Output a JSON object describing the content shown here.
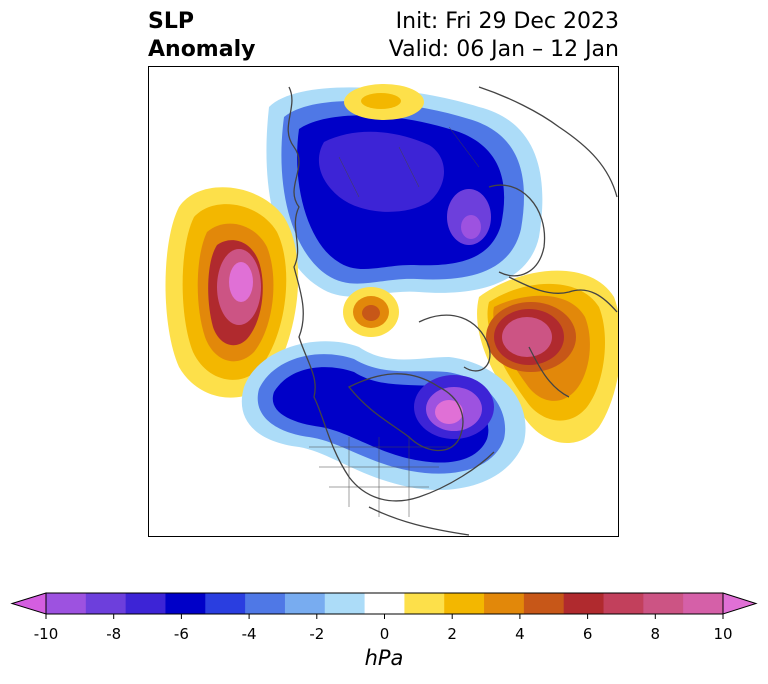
{
  "header": {
    "title_line1": "SLP",
    "title_line2": "Anomaly",
    "init": "Init: Fri 29 Dec 2023",
    "valid": "Valid: 06 Jan – 12 Jan"
  },
  "colorbar": {
    "unit": "hPa",
    "range": [
      -10,
      10
    ],
    "ticks": [
      "-10",
      "-8",
      "-6",
      "-4",
      "-2",
      "0",
      "2",
      "4",
      "6",
      "8",
      "10"
    ],
    "colors": [
      "#d45ee0",
      "#9d52e0",
      "#6d3fdc",
      "#3d24d6",
      "#0000c8",
      "#2a3ee0",
      "#4f78e6",
      "#78acf0",
      "#acdcf8",
      "#ffffff",
      "#fde04a",
      "#f3b700",
      "#e2880a",
      "#c75718",
      "#b02a2e",
      "#c2405c",
      "#cc5484",
      "#d560a8",
      "#e070d6"
    ]
  },
  "map": {
    "projection": "north-polar-stereographic",
    "colors": {
      "coast": "#444444"
    }
  }
}
